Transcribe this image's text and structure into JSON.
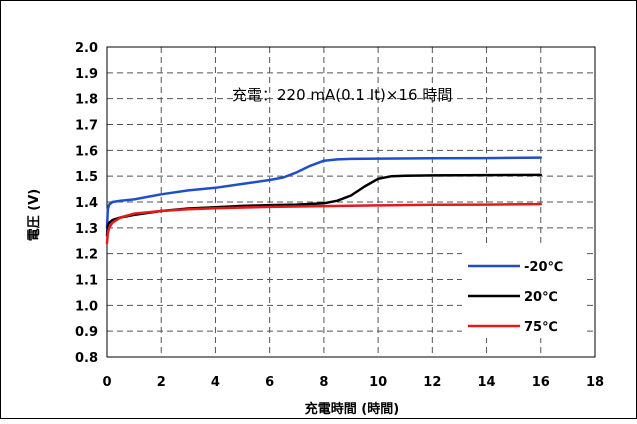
{
  "chart_data": {
    "type": "line",
    "title": "",
    "xlabel": "充電時間 (時間)",
    "ylabel": "電圧 (V)",
    "annotation": "充電：220 mA(0.1 It)×16 時間",
    "xlim": [
      0,
      18
    ],
    "ylim": [
      0.8,
      2.0
    ],
    "xticks": [
      0,
      2,
      4,
      6,
      8,
      10,
      12,
      14,
      16,
      18
    ],
    "yticks": [
      "0.8",
      "0.9",
      "1.0",
      "1.1",
      "1.2",
      "1.3",
      "1.4",
      "1.5",
      "1.6",
      "1.7",
      "1.8",
      "1.9",
      "2.0"
    ],
    "grid": true,
    "legend_position": "bottom-right",
    "series": [
      {
        "name": "-20℃",
        "color": "#1f4fc8",
        "x": [
          0,
          0.03,
          0.08,
          0.2,
          0.5,
          1,
          2,
          3,
          4,
          5,
          6,
          6.5,
          7,
          7.5,
          8,
          8.5,
          9,
          10,
          12,
          14,
          16
        ],
        "y": [
          1.3,
          1.37,
          1.39,
          1.4,
          1.405,
          1.41,
          1.43,
          1.445,
          1.455,
          1.47,
          1.485,
          1.495,
          1.515,
          1.54,
          1.56,
          1.565,
          1.567,
          1.568,
          1.569,
          1.57,
          1.572
        ]
      },
      {
        "name": "20℃",
        "color": "#000000",
        "x": [
          0,
          0.03,
          0.08,
          0.2,
          0.5,
          1,
          2,
          3,
          4,
          5,
          6,
          7,
          8,
          8.5,
          9,
          9.5,
          10,
          10.5,
          11,
          12,
          14,
          16
        ],
        "y": [
          1.27,
          1.31,
          1.32,
          1.33,
          1.34,
          1.35,
          1.365,
          1.375,
          1.38,
          1.385,
          1.388,
          1.39,
          1.395,
          1.405,
          1.425,
          1.46,
          1.49,
          1.5,
          1.502,
          1.503,
          1.504,
          1.505
        ]
      },
      {
        "name": "75℃",
        "color": "#e31a1c",
        "x": [
          0,
          0.03,
          0.08,
          0.2,
          0.5,
          1,
          2,
          3,
          4,
          6,
          8,
          10,
          12,
          14,
          16
        ],
        "y": [
          1.24,
          1.28,
          1.3,
          1.32,
          1.34,
          1.355,
          1.365,
          1.372,
          1.376,
          1.381,
          1.384,
          1.387,
          1.389,
          1.39,
          1.392
        ]
      }
    ]
  }
}
